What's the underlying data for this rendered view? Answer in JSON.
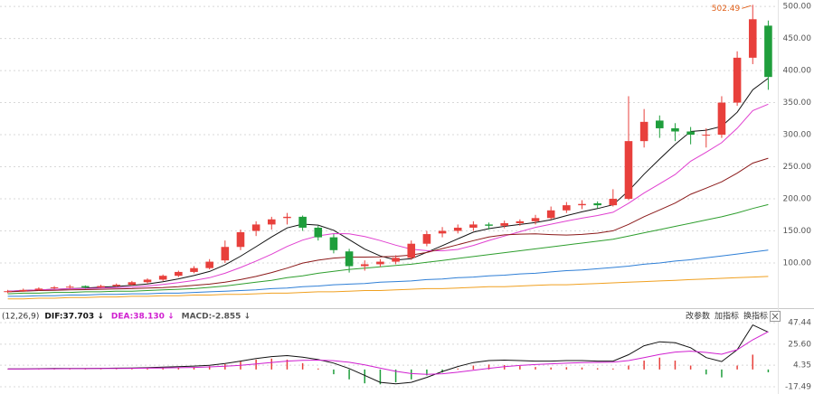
{
  "chart_data": [
    {
      "type": "candlestick",
      "ylim": [
        38,
        510
      ],
      "yticks": [
        {
          "value": 100,
          "label": "100.00"
        },
        {
          "value": 150,
          "label": "150.00"
        },
        {
          "value": 200,
          "label": "200.00"
        },
        {
          "value": 250,
          "label": "250.00"
        },
        {
          "value": 300,
          "label": "300.00"
        },
        {
          "value": 350,
          "label": "350.00"
        },
        {
          "value": 400,
          "label": "400.00"
        },
        {
          "value": 450,
          "label": "450.00"
        },
        {
          "value": 500,
          "label": "500.00"
        }
      ],
      "grid": true,
      "up_color": "#e8403c",
      "down_color": "#1f9e3c",
      "open": [
        55,
        56,
        58,
        61,
        62,
        64,
        62,
        64,
        66,
        70,
        74,
        80,
        86,
        92,
        104,
        125,
        150,
        160,
        170,
        172,
        155,
        140,
        118,
        95,
        98,
        102,
        108,
        130,
        146,
        150,
        155,
        160,
        158,
        162,
        165,
        170,
        182,
        190,
        193,
        190,
        200,
        290,
        322,
        310,
        305,
        300,
        300,
        350,
        420,
        470
      ],
      "high": [
        58,
        60,
        62,
        64,
        66,
        65,
        66,
        68,
        72,
        76,
        82,
        88,
        95,
        106,
        135,
        152,
        165,
        172,
        178,
        174,
        158,
        145,
        122,
        104,
        106,
        112,
        135,
        150,
        156,
        160,
        165,
        163,
        166,
        168,
        175,
        188,
        195,
        198,
        196,
        215,
        360,
        340,
        330,
        318,
        312,
        310,
        360,
        430,
        502.49,
        478
      ],
      "low": [
        53,
        55,
        57,
        59,
        60,
        60,
        61,
        63,
        65,
        68,
        72,
        78,
        84,
        90,
        100,
        120,
        142,
        152,
        160,
        150,
        135,
        115,
        85,
        88,
        94,
        98,
        105,
        126,
        140,
        146,
        150,
        152,
        154,
        158,
        160,
        168,
        178,
        184,
        185,
        188,
        198,
        280,
        295,
        290,
        285,
        280,
        295,
        345,
        410,
        370
      ],
      "close": [
        56,
        58,
        60,
        62,
        63,
        62,
        64,
        66,
        70,
        74,
        80,
        86,
        92,
        102,
        125,
        148,
        160,
        168,
        172,
        155,
        140,
        120,
        95,
        98,
        102,
        108,
        130,
        145,
        150,
        155,
        160,
        158,
        162,
        165,
        170,
        182,
        190,
        192,
        190,
        200,
        290,
        320,
        310,
        305,
        300,
        300,
        350,
        420,
        480,
        390
      ],
      "lines": [
        {
          "color": "#111111",
          "values": [
            56,
            57,
            58,
            59,
            59.8,
            61,
            62.2,
            63.4,
            65,
            67.2,
            70.8,
            75.2,
            80.4,
            86.8,
            97,
            110.6,
            125.4,
            140.6,
            154.6,
            160.6,
            159,
            151,
            136.4,
            121.6,
            111,
            104.6,
            106.6,
            116.6,
            127,
            137.6,
            148,
            153.6,
            157,
            160,
            163,
            167.4,
            173.8,
            179.8,
            184.8,
            190.8,
            212.4,
            238.4,
            262,
            285,
            305,
            307,
            313,
            335,
            370,
            388
          ]
        },
        {
          "color": "#e040d0",
          "values": [
            56,
            57,
            58,
            59,
            59.8,
            60.2,
            61,
            61.6,
            62.3,
            64.1,
            66.5,
            69.3,
            72.7,
            77,
            83.9,
            92.9,
            102.9,
            113.7,
            125.8,
            135.6,
            142.2,
            145.8,
            145.5,
            141.1,
            135,
            127.8,
            121.5,
            119.1,
            119,
            121.1,
            127.3,
            135.1,
            142,
            148.8,
            155.5,
            160.5,
            165.4,
            169.9,
            173.9,
            179.1,
            193.1,
            209.1,
            223.4,
            237.9,
            258.7,
            272.7,
            287.5,
            310,
            337.5,
            347.5
          ]
        },
        {
          "color": "#8b1a1a",
          "values": [
            55,
            56,
            57,
            57.5,
            58,
            58.5,
            59,
            59.5,
            60,
            61,
            61.5,
            63,
            65,
            67,
            70,
            74,
            79,
            85,
            92,
            99.9,
            104.4,
            107.6,
            109.1,
            109.1,
            109.5,
            110.4,
            112.2,
            116.4,
            122.4,
            128.4,
            134.8,
            140.5,
            143.8,
            145,
            145.3,
            144.2,
            143.5,
            144.5,
            146.5,
            150.1,
            160.2,
            172.1,
            182.7,
            193.4,
            207.1,
            216.6,
            226.5,
            240,
            255.7,
            263.3
          ]
        },
        {
          "color": "#2e9e2e",
          "values": [
            52,
            53,
            53,
            54,
            54,
            55,
            55,
            56,
            56,
            57,
            58,
            59,
            60,
            62,
            64,
            67,
            70,
            73,
            77,
            80,
            84,
            87,
            90,
            92,
            94,
            96,
            98,
            101,
            104,
            107,
            110,
            113,
            116,
            119,
            122,
            125,
            128,
            131,
            134,
            137,
            142,
            147,
            152,
            157,
            162,
            167,
            172,
            178,
            185,
            191
          ]
        },
        {
          "color": "#2f7fd6",
          "values": [
            48,
            48,
            49,
            49,
            50,
            50,
            51,
            51,
            52,
            52,
            53,
            53,
            54,
            55,
            56,
            57,
            58,
            60,
            61,
            63,
            64,
            66,
            67,
            68,
            70,
            71,
            72,
            74,
            75,
            77,
            78,
            80,
            81,
            83,
            84,
            86,
            88,
            89,
            91,
            93,
            95,
            98,
            100,
            103,
            105,
            108,
            111,
            114,
            117,
            120
          ]
        },
        {
          "color": "#f0a020",
          "values": [
            44,
            44,
            45,
            45,
            46,
            46,
            47,
            47,
            48,
            48,
            49,
            49,
            50,
            50,
            51,
            51,
            52,
            53,
            53,
            54,
            55,
            55,
            56,
            57,
            57,
            58,
            59,
            60,
            60,
            61,
            62,
            63,
            63,
            64,
            65,
            66,
            66,
            67,
            68,
            69,
            70,
            71,
            72,
            73,
            74,
            75,
            76,
            77,
            78,
            79
          ]
        }
      ],
      "annotations": [
        {
          "label": "502.49",
          "value": 502.49,
          "color": "#e0601a"
        }
      ]
    },
    {
      "type": "macd",
      "ylim": [
        -24.8,
        60.2
      ],
      "yticks": [
        -17.49,
        4.35,
        {
          "value": 25.6,
          "label": "25.60"
        },
        47.44
      ],
      "grid": true,
      "params": "(12,26,9)",
      "legend": [
        {
          "text": "DIF:37.703 ↓",
          "color": "#111111"
        },
        {
          "text": "DEA:38.130 ↓",
          "color": "#d020d0"
        },
        {
          "text": "MACD:-2.855 ↓",
          "color": "#555555"
        }
      ],
      "buttons": [
        "改参数",
        "加指标",
        "换指标"
      ],
      "up_color": "#e8403c",
      "down_color": "#1f9e3c",
      "dif": {
        "color": "#111111",
        "values": [
          0.5,
          0.6,
          0.8,
          1,
          1.1,
          1.1,
          1.2,
          1.3,
          1.5,
          1.8,
          2.3,
          2.8,
          3.4,
          4.3,
          6,
          8.5,
          11,
          13,
          14,
          12.5,
          10,
          6.5,
          1,
          -6,
          -13,
          -14.5,
          -13,
          -8,
          -2,
          3,
          7,
          9,
          9.5,
          9,
          8.5,
          8.5,
          9,
          9,
          8.5,
          8.5,
          15,
          24,
          28,
          27,
          22,
          12,
          8,
          20,
          45,
          37.703
        ]
      },
      "dea": {
        "color": "#d020d0",
        "values": [
          0.4,
          0.5,
          0.6,
          0.7,
          0.8,
          0.9,
          1,
          1.1,
          1.2,
          1.3,
          1.5,
          1.8,
          2.1,
          2.6,
          3.3,
          4.3,
          5.6,
          7.1,
          8.5,
          9.3,
          9.5,
          8.9,
          7.3,
          4.6,
          1.3,
          -1.9,
          -4.1,
          -4.9,
          -4.3,
          -2.8,
          -0.8,
          1.2,
          2.9,
          4.1,
          5,
          5.7,
          6.4,
          6.9,
          7.2,
          7.5,
          9,
          12,
          15.2,
          17.6,
          18.5,
          17.2,
          15.4,
          20,
          30,
          38.13
        ]
      },
      "macd": {
        "values": [
          0.2,
          0.2,
          0.4,
          0.6,
          0.6,
          0.4,
          0.4,
          0.4,
          0.6,
          1,
          1.6,
          2,
          2.6,
          3.4,
          5.4,
          8,
          10,
          11,
          10,
          6.4,
          1,
          -4.8,
          -10,
          -14,
          -15,
          -13,
          -10,
          -6,
          -3,
          1,
          4,
          5,
          4.5,
          3.5,
          2.5,
          2,
          2.3,
          2,
          1.3,
          1,
          4,
          9,
          12,
          9,
          4,
          -5,
          -8,
          4,
          15,
          -2.855
        ]
      }
    }
  ]
}
